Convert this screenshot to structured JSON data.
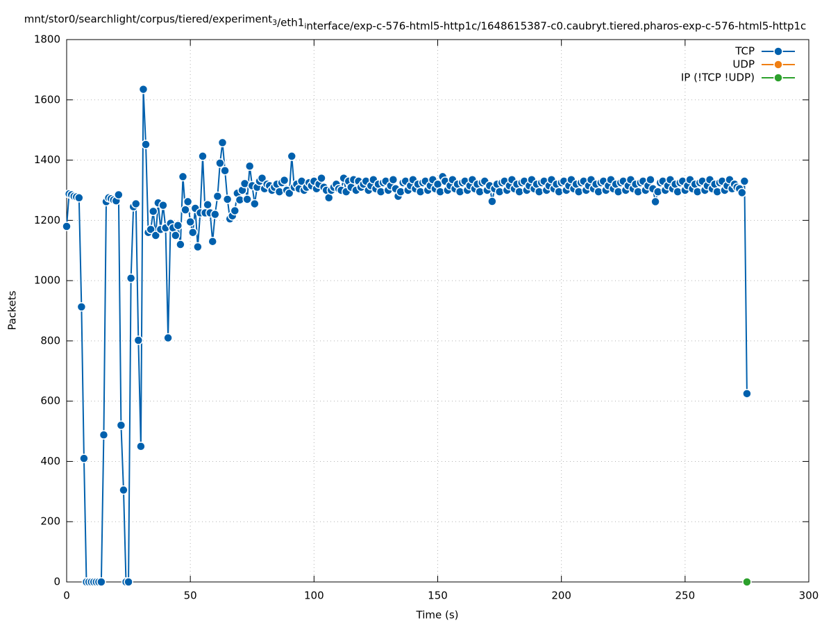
{
  "chart_data": {
    "type": "line",
    "title": "mnt/stor0/searchlight/corpus/tiered/experiment_3/eth1_interface/exp-c-576-html5-http1c/1648615387-c0.caubryt.tiered.pharos-exp-c-576-html5-http1c",
    "x_label": "Time (s)",
    "y_label": "Packets",
    "xlim": [
      0,
      300
    ],
    "xticks": [
      0,
      50,
      100,
      150,
      200,
      250,
      300
    ],
    "ylim": [
      0,
      1800
    ],
    "yticks": [
      0,
      200,
      400,
      600,
      800,
      1000,
      1200,
      1400,
      1600,
      1800
    ],
    "grid": true,
    "legend": "top-right",
    "series": [
      {
        "name": "TCP",
        "color": "#0060ad",
        "x": [
          0,
          1,
          2,
          3,
          4,
          5,
          6,
          7,
          8,
          9,
          10,
          11,
          12,
          13,
          14,
          15,
          16,
          17,
          18,
          19,
          20,
          21,
          22,
          23,
          24,
          25,
          26,
          27,
          28,
          29,
          30,
          31,
          32,
          33,
          34,
          35,
          36,
          37,
          38,
          39,
          40,
          41,
          42,
          43,
          44,
          45,
          46,
          47,
          48,
          49,
          50,
          51,
          52,
          53,
          54,
          55,
          56,
          57,
          58,
          59,
          60,
          61,
          62,
          63,
          64,
          65,
          66,
          67,
          68,
          69,
          70,
          71,
          72,
          73,
          74,
          75,
          76,
          77,
          78,
          79,
          80,
          81,
          82,
          83,
          84,
          85,
          86,
          87,
          88,
          89,
          90,
          91,
          92,
          93,
          94,
          95,
          96,
          97,
          98,
          99,
          100,
          101,
          102,
          103,
          104,
          105,
          106,
          107,
          108,
          109,
          110,
          111,
          112,
          113,
          114,
          115,
          116,
          117,
          118,
          119,
          120,
          121,
          122,
          123,
          124,
          125,
          126,
          127,
          128,
          129,
          130,
          131,
          132,
          133,
          134,
          135,
          136,
          137,
          138,
          139,
          140,
          141,
          142,
          143,
          144,
          145,
          146,
          147,
          148,
          149,
          150,
          151,
          152,
          153,
          154,
          155,
          156,
          157,
          158,
          159,
          160,
          161,
          162,
          163,
          164,
          165,
          166,
          167,
          168,
          169,
          170,
          171,
          172,
          173,
          174,
          175,
          176,
          177,
          178,
          179,
          180,
          181,
          182,
          183,
          184,
          185,
          186,
          187,
          188,
          189,
          190,
          191,
          192,
          193,
          194,
          195,
          196,
          197,
          198,
          199,
          200,
          201,
          202,
          203,
          204,
          205,
          206,
          207,
          208,
          209,
          210,
          211,
          212,
          213,
          214,
          215,
          216,
          217,
          218,
          219,
          220,
          221,
          222,
          223,
          224,
          225,
          226,
          227,
          228,
          229,
          230,
          231,
          232,
          233,
          234,
          235,
          236,
          237,
          238,
          239,
          240,
          241,
          242,
          243,
          244,
          245,
          246,
          247,
          248,
          249,
          250,
          251,
          252,
          253,
          254,
          255,
          256,
          257,
          258,
          259,
          260,
          261,
          262,
          263,
          264,
          265,
          266,
          267,
          268,
          269,
          270,
          271,
          272,
          273,
          274,
          275
        ],
        "values": [
          1180,
          1288,
          1285,
          1280,
          1278,
          1275,
          913,
          410,
          0,
          0,
          0,
          0,
          0,
          0,
          0,
          488,
          1262,
          1275,
          1272,
          1268,
          1265,
          1285,
          520,
          305,
          0,
          0,
          1008,
          1245,
          1255,
          802,
          450,
          1635,
          1452,
          1160,
          1170,
          1230,
          1150,
          1258,
          1170,
          1250,
          1175,
          810,
          1190,
          1175,
          1150,
          1183,
          1120,
          1345,
          1235,
          1262,
          1195,
          1160,
          1240,
          1112,
          1225,
          1413,
          1225,
          1252,
          1225,
          1130,
          1220,
          1280,
          1390,
          1458,
          1365,
          1270,
          1205,
          1215,
          1232,
          1290,
          1268,
          1300,
          1322,
          1270,
          1380,
          1315,
          1255,
          1310,
          1330,
          1340,
          1305,
          1320,
          1315,
          1300,
          1310,
          1320,
          1295,
          1325,
          1333,
          1300,
          1290,
          1413,
          1310,
          1320,
          1305,
          1330,
          1300,
          1310,
          1325,
          1315,
          1330,
          1305,
          1320,
          1340,
          1310,
          1300,
          1275,
          1300,
          1310,
          1320,
          1305,
          1300,
          1340,
          1295,
          1330,
          1310,
          1335,
          1300,
          1330,
          1310,
          1320,
          1330,
          1300,
          1315,
          1335,
          1305,
          1320,
          1295,
          1325,
          1330,
          1300,
          1315,
          1335,
          1305,
          1280,
          1295,
          1325,
          1330,
          1300,
          1315,
          1335,
          1305,
          1320,
          1295,
          1325,
          1330,
          1300,
          1315,
          1335,
          1305,
          1320,
          1295,
          1345,
          1330,
          1300,
          1315,
          1335,
          1305,
          1320,
          1295,
          1325,
          1330,
          1300,
          1315,
          1335,
          1305,
          1320,
          1295,
          1325,
          1330,
          1300,
          1315,
          1263,
          1305,
          1320,
          1295,
          1325,
          1330,
          1300,
          1315,
          1335,
          1305,
          1320,
          1295,
          1325,
          1330,
          1300,
          1315,
          1335,
          1305,
          1320,
          1295,
          1325,
          1330,
          1300,
          1315,
          1335,
          1305,
          1320,
          1295,
          1325,
          1330,
          1300,
          1315,
          1335,
          1305,
          1320,
          1295,
          1325,
          1330,
          1300,
          1315,
          1335,
          1305,
          1320,
          1295,
          1325,
          1330,
          1300,
          1315,
          1335,
          1305,
          1320,
          1295,
          1325,
          1330,
          1300,
          1315,
          1335,
          1305,
          1320,
          1295,
          1325,
          1330,
          1300,
          1315,
          1335,
          1305,
          1262,
          1295,
          1325,
          1330,
          1300,
          1315,
          1335,
          1305,
          1320,
          1295,
          1325,
          1330,
          1300,
          1315,
          1335,
          1305,
          1320,
          1295,
          1325,
          1330,
          1300,
          1315,
          1335,
          1305,
          1320,
          1295,
          1325,
          1330,
          1300,
          1315,
          1335,
          1305,
          1320,
          1310,
          1305,
          1292,
          1330,
          625
        ]
      },
      {
        "name": "UDP",
        "color": "#f07f13",
        "x": [],
        "values": []
      },
      {
        "name": "IP (!TCP  !UDP)",
        "color": "#2ca02c",
        "x": [
          275
        ],
        "values": [
          0
        ]
      }
    ]
  }
}
